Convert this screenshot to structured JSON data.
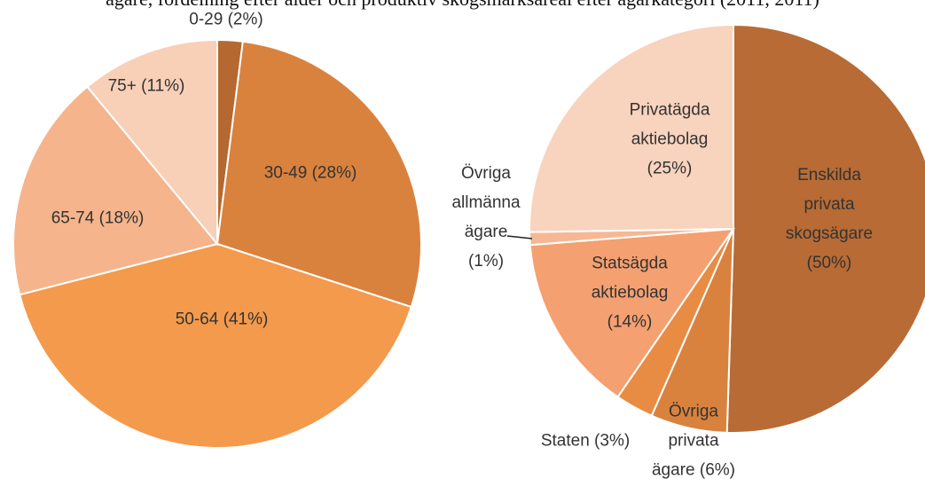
{
  "title": "ägare, fördelning efter ålder och produktiv skogsmarksareal efter ägarkategori (2011, 2011)",
  "chart_data": [
    {
      "type": "pie",
      "categories": [
        "0-29",
        "30-49",
        "50-64",
        "65-74",
        "75+"
      ],
      "values": [
        2,
        28,
        41,
        18,
        11
      ],
      "value_labels": [
        "(2%)",
        "(28%)",
        "(41%)",
        "(18%)",
        "(11%)"
      ],
      "colors": [
        "#b5682f",
        "#d9823e",
        "#f39a4c",
        "#f5b48b",
        "#f8cfb7"
      ]
    },
    {
      "type": "pie",
      "categories": [
        "Enskilda privata skogsägare",
        "Övriga privata ägare",
        "Staten",
        "Statsägda aktiebolag",
        "Övriga allmänna ägare",
        "Privatägda aktiebolag"
      ],
      "values": [
        50,
        6,
        3,
        14,
        1,
        25
      ],
      "value_labels": [
        "(50%)",
        "(6%)",
        "(3%)",
        "(14%)",
        "(1%)",
        "(25%)"
      ],
      "colors": [
        "#b86b34",
        "#d9823e",
        "#e88c43",
        "#f4a070",
        "#f6b894",
        "#f8d3bd"
      ]
    }
  ]
}
